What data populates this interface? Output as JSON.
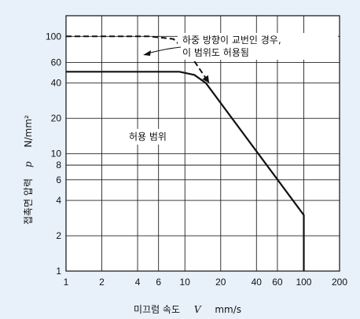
{
  "chart_data": {
    "type": "line",
    "xlabel": "미끄럼 속도",
    "xsym": "V",
    "xunit": "mm/s",
    "ylabel": "접촉면 압력",
    "ysym": "p",
    "yunit": "N/mm²",
    "xscale": "log",
    "yscale": "log",
    "xlim": [
      1,
      200
    ],
    "ylim": [
      1,
      150
    ],
    "x_ticks": [
      1,
      2,
      4,
      6,
      10,
      20,
      40,
      60,
      100,
      200
    ],
    "x_tick_labels": [
      "1",
      "2",
      "4",
      "6",
      "10",
      "20",
      "40",
      "60",
      "100",
      "200"
    ],
    "y_ticks": [
      1,
      2,
      4,
      6,
      8,
      10,
      20,
      40,
      60,
      100
    ],
    "y_tick_labels": [
      "1",
      "2",
      "4",
      "6",
      "8",
      "10",
      "20",
      "40",
      "60",
      "100"
    ],
    "grid": true,
    "series": [
      {
        "style": "solid",
        "x": [
          1,
          9,
          12,
          15,
          100,
          100
        ],
        "y": [
          50,
          50,
          47,
          40,
          3,
          1
        ]
      },
      {
        "style": "dashed",
        "x": [
          1,
          5,
          8,
          11,
          16
        ],
        "y": [
          100,
          100,
          95,
          70,
          40
        ]
      }
    ],
    "annotations": [
      {
        "line1": "하중 방향이 교번인 경우,",
        "line2": "이 범위도 허용됨",
        "x": 30,
        "y": 100
      },
      {
        "text": "허용 범위",
        "x": 8.5,
        "y": 14.5
      }
    ]
  }
}
